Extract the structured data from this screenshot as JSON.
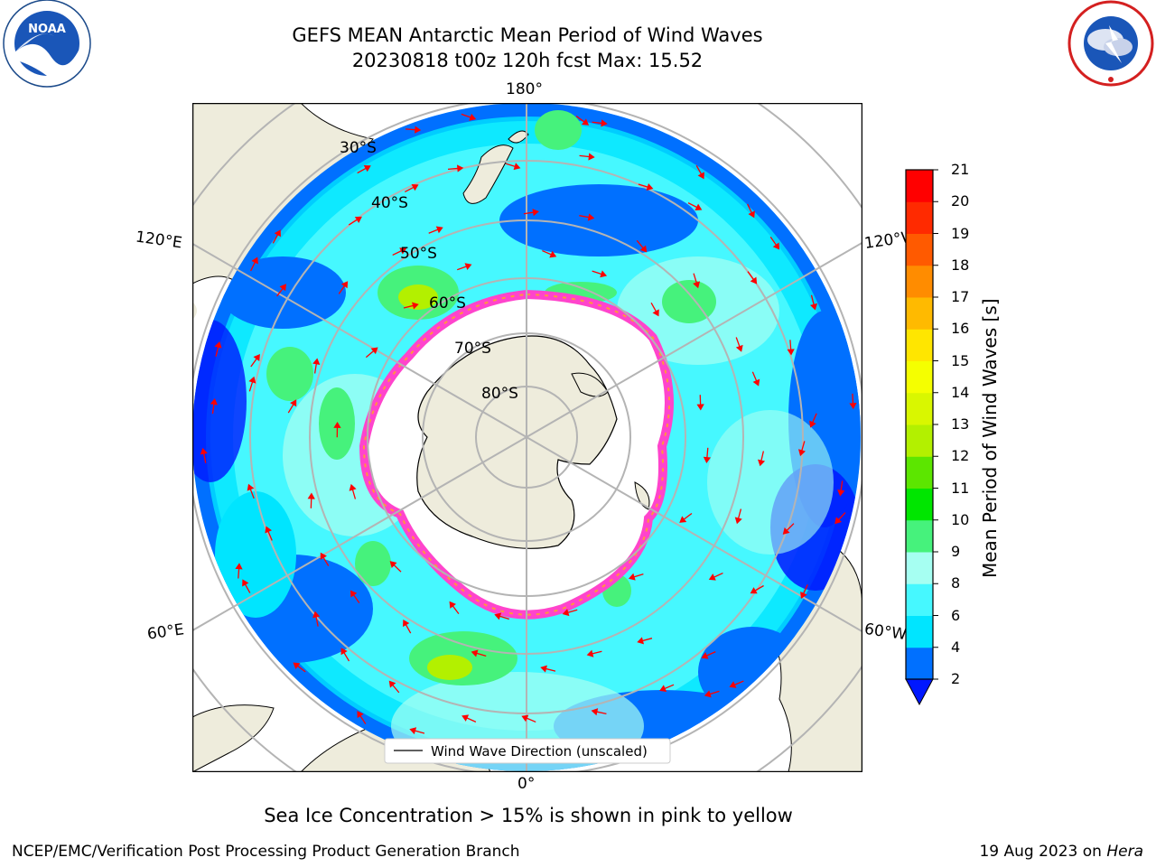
{
  "title": "GEFS MEAN Antarctic Mean Period of Wind Waves",
  "subtitle": "20230818 t00z 120h fcst   Max: 15.52",
  "sea_ice_note": "Sea Ice Concentration > 15% is shown in pink to yellow",
  "credit_left": "NCEP/EMC/Verification Post Processing Product Generation Branch",
  "credit_right_date": "19 Aug 2023 on ",
  "credit_right_host": "Hera",
  "logos": {
    "left": "NOAA",
    "right": "NATIONAL WEATHER SERVICE"
  },
  "map": {
    "projection": "south-polar-stereographic",
    "longitude_labels": [
      "180°",
      "120°E",
      "120°W",
      "60°E",
      "60°W",
      "0°"
    ],
    "latitude_labels": [
      "30°S",
      "40°S",
      "50°S",
      "60°S",
      "70°S",
      "80°S"
    ],
    "legend_label": "Wind Wave Direction (unscaled)",
    "colors": {
      "land": "#eeecdc",
      "ice_edge": "#ff44cc",
      "arrow": "#ff0000",
      "grid": "#b4b4b4"
    }
  },
  "colorbar": {
    "label": "Mean Period of Wind Waves [s]",
    "ticks": [
      "2",
      "4",
      "6",
      "8",
      "9",
      "10",
      "11",
      "12",
      "13",
      "14",
      "15",
      "16",
      "17",
      "18",
      "19",
      "20",
      "21"
    ],
    "colors": [
      "#0070ff",
      "#00e5ff",
      "#46f8ff",
      "#a6fff2",
      "#46f27c",
      "#00e600",
      "#5ce600",
      "#b3f000",
      "#d9f700",
      "#f5ff00",
      "#ffe600",
      "#ffba00",
      "#ff8c00",
      "#ff5a00",
      "#ff2a00",
      "#ff0000"
    ],
    "under_color": "#0018ff"
  },
  "chart_data": {
    "type": "heatmap",
    "title": "GEFS MEAN Antarctic Mean Period of Wind Waves",
    "subtitle": "20230818 t00z 120h fcst   Max: 15.52",
    "variable": "Mean Period of Wind Waves [s]",
    "max_value": 15.52,
    "levels": [
      2,
      4,
      6,
      8,
      9,
      10,
      11,
      12,
      13,
      14,
      15,
      16,
      17,
      18,
      19,
      20,
      21
    ],
    "projection": "south polar stereographic",
    "latitude_circles": [
      30,
      40,
      50,
      60,
      70,
      80
    ],
    "longitude_lines": [
      0,
      60,
      120,
      180,
      -120,
      -60
    ]
  }
}
